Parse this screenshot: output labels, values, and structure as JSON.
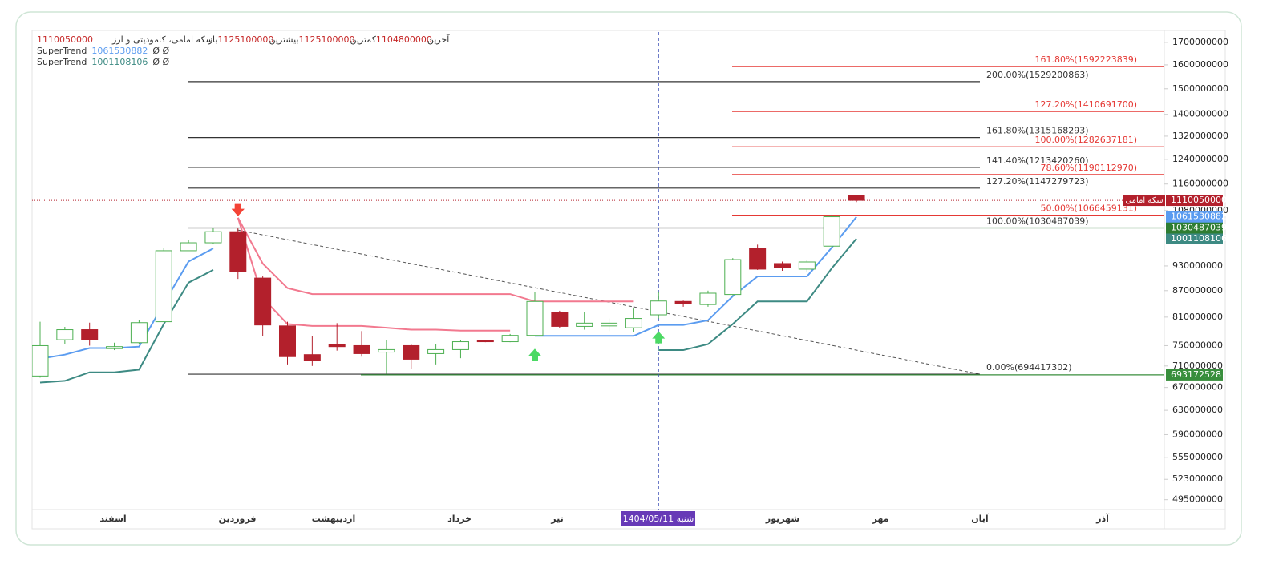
{
  "chart_data": {
    "type": "candlestick",
    "title": "سکه امامی، کامودیتی و ارز",
    "symbol": "سکه امامی",
    "ohlc_labels": {
      "open": "باز",
      "high": "بیشترین",
      "low": "کمترین",
      "close": "آخرین"
    },
    "log_scale": true,
    "ylim": [
      482000000,
      1748000000
    ],
    "yticks": [
      1700000000,
      1600000000,
      1500000000,
      1400000000,
      1320000000,
      1240000000,
      1160000000,
      1080000000,
      930000000,
      870000000,
      810000000,
      750000000,
      710000000,
      670000000,
      630000000,
      590000000,
      555000000,
      523000000,
      495000000
    ],
    "xticks": [
      "اسفند",
      "فروردین",
      "اردیبهشت",
      "خرداد",
      "تیر",
      "شهریور",
      "مهر",
      "آبان",
      "آذر"
    ],
    "crosshair_label": "شنبه 1404/05/11",
    "up_color": "#4caf50",
    "down_color": "#b3202c",
    "open": [
      691000000,
      762000000,
      783000000,
      744000000,
      756000000,
      800000000,
      969000000,
      990000000,
      1020000000,
      900000000,
      791000000,
      732000000,
      753000000,
      750000000,
      737000000,
      750000000,
      734000000,
      742000000,
      760000000,
      758000000,
      771000000,
      820000000,
      790000000,
      791000000,
      787000000,
      815000000,
      845000000,
      838000000,
      861000000,
      975000000,
      936000000,
      922000000,
      981000000,
      1125100000
    ],
    "high": [
      800000000,
      789000000,
      798000000,
      756000000,
      803000000,
      977000000,
      998000000,
      1030000000,
      1030000000,
      904000000,
      800000000,
      770000000,
      797000000,
      780000000,
      762000000,
      753000000,
      753000000,
      762000000,
      761000000,
      774000000,
      866000000,
      824000000,
      822000000,
      807000000,
      829000000,
      866000000,
      847000000,
      870000000,
      950000000,
      985000000,
      941000000,
      946000000,
      1068000000,
      1125100000
    ],
    "low": [
      688000000,
      753000000,
      750000000,
      741000000,
      753000000,
      800000000,
      969000000,
      988000000,
      898000000,
      770000000,
      713000000,
      710000000,
      740000000,
      728000000,
      695000000,
      705000000,
      713000000,
      725000000,
      757000000,
      757000000,
      770000000,
      787000000,
      783000000,
      780000000,
      778000000,
      807000000,
      833000000,
      833000000,
      859000000,
      920000000,
      918000000,
      916000000,
      981000000,
      1104800000
    ],
    "close": [
      750000000,
      783000000,
      762000000,
      748000000,
      798000000,
      969000000,
      990000000,
      1020000000,
      916000000,
      793000000,
      728000000,
      721000000,
      748000000,
      734000000,
      742000000,
      723000000,
      742000000,
      758000000,
      758000000,
      771000000,
      845000000,
      790000000,
      797000000,
      797000000,
      807000000,
      846000000,
      840000000,
      864000000,
      946000000,
      922000000,
      926000000,
      940000000,
      1062000000,
      1110050000
    ],
    "supertrend": [
      {
        "name": "SuperTrend",
        "flags": "Ø Ø",
        "up_color": "#5b9cf0",
        "down_color": "#f2798f",
        "up": [
          724000000,
          732000000,
          745000000,
          745000000,
          748000000,
          840000000,
          941000000,
          975000000,
          null,
          null,
          null,
          null,
          null,
          null,
          null,
          null,
          null,
          null,
          null,
          null,
          770000000,
          770000000,
          770000000,
          770000000,
          770000000,
          793000000,
          793000000,
          803000000,
          857000000,
          904000000,
          904000000,
          904000000,
          977000000,
          1061530882
        ],
        "down": [
          null,
          null,
          null,
          null,
          null,
          null,
          null,
          null,
          1059000000,
          853000000,
          795000000,
          791000000,
          791000000,
          791000000,
          787000000,
          783000000,
          783000000,
          781000000,
          781000000,
          781000000,
          null,
          null,
          null,
          null,
          null,
          null,
          null,
          null,
          null,
          null,
          null,
          null,
          null,
          null
        ]
      },
      {
        "name": "SuperTrend",
        "flags": "Ø Ø",
        "up_color": "#3d8a83",
        "down_color": "#f2798f",
        "up": [
          679000000,
          682000000,
          698000000,
          698000000,
          703000000,
          795000000,
          889000000,
          920000000,
          null,
          null,
          null,
          null,
          null,
          null,
          null,
          null,
          null,
          null,
          null,
          null,
          null,
          null,
          null,
          null,
          null,
          741000000,
          741000000,
          753000000,
          795000000,
          845000000,
          845000000,
          845000000,
          924000000,
          1001108106
        ],
        "down": [
          null,
          null,
          null,
          null,
          null,
          null,
          null,
          null,
          1059000000,
          936000000,
          876000000,
          862000000,
          862000000,
          862000000,
          862000000,
          862000000,
          862000000,
          862000000,
          862000000,
          862000000,
          845000000,
          845000000,
          845000000,
          845000000,
          845000000,
          null,
          null,
          null,
          null,
          null,
          null,
          null,
          null,
          null
        ]
      }
    ],
    "fib_black": {
      "color": "#333333",
      "levels": [
        {
          "value": 694417302,
          "label": "0.00%(694417302)"
        },
        {
          "value": 1030487039,
          "label": "100.00%(1030487039)"
        },
        {
          "value": 1147279723,
          "label": "127.20%(1147279723)"
        },
        {
          "value": 1213420260,
          "label": "141.40%(1213420260)"
        },
        {
          "value": 1315168293,
          "label": "161.80%(1315168293)"
        },
        {
          "value": 1529200863,
          "label": "200.00%(1529200863)"
        }
      ]
    },
    "fib_red": {
      "color": "#e53935",
      "levels": [
        {
          "value": 1066459131,
          "label": "50.00%(1066459131)"
        },
        {
          "value": 1190112970,
          "label": "78.60%(1190112970)"
        },
        {
          "value": 1282637181,
          "label": "100.00%(1282637181)"
        },
        {
          "value": 1410691700,
          "label": "127.20%(1410691700)"
        },
        {
          "value": 1592223839,
          "label": "161.80%(1592223839)"
        }
      ]
    },
    "price_lines": [
      {
        "value": 693172528,
        "color": "#388e3c"
      }
    ]
  }
}
